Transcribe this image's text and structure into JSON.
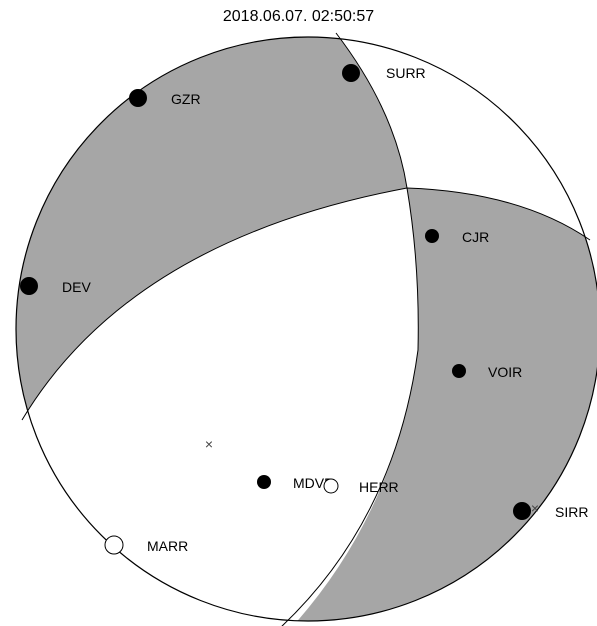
{
  "title": "2018.06.07. 02:50:57",
  "colors": {
    "compressional_fill": "#a6a6a6",
    "dilatational_fill": "#ffffff",
    "outline": "#000000"
  },
  "stations": [
    {
      "name": "SURR",
      "polarity": "compression"
    },
    {
      "name": "GZR",
      "polarity": "compression"
    },
    {
      "name": "CJR",
      "polarity": "compression"
    },
    {
      "name": "DEV",
      "polarity": "compression"
    },
    {
      "name": "VOIR",
      "polarity": "compression"
    },
    {
      "name": "MDVR",
      "polarity": "compression"
    },
    {
      "name": "HERR",
      "polarity": "dilatation"
    },
    {
      "name": "SIRR",
      "polarity": "compression"
    },
    {
      "name": "MARR",
      "polarity": "dilatation"
    }
  ],
  "axes_markers": [
    {
      "name": "P-axis-marker",
      "symbol": "×"
    },
    {
      "name": "T-axis-marker",
      "symbol": "×"
    }
  ]
}
